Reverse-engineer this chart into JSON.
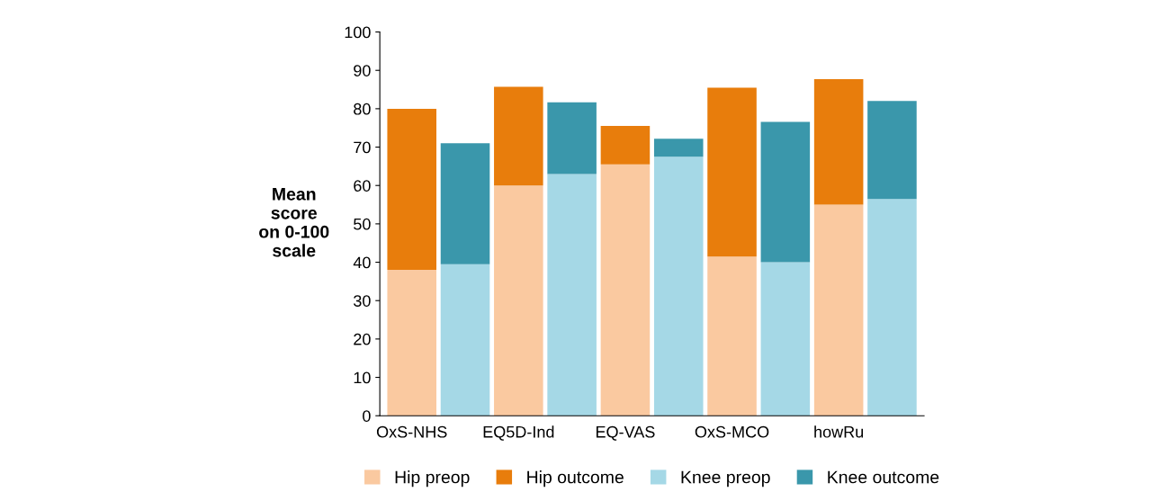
{
  "chart_data": {
    "type": "bar",
    "stacked": true,
    "ylabel": "Mean\nscore\non 0-100\nscale",
    "categories": [
      "OxS-NHS",
      null,
      "EQ5D-Ind",
      null,
      "EQ-VAS",
      null,
      "OxS-MCO",
      null,
      "howRu",
      null
    ],
    "series": [
      {
        "name": "Hip preop",
        "color": "#fac9a0",
        "values": [
          38,
          null,
          60,
          null,
          65.5,
          null,
          41.5,
          null,
          55,
          null
        ]
      },
      {
        "name": "Hip outcome",
        "color": "#e87d0c",
        "values": [
          42,
          null,
          25.7,
          null,
          10,
          null,
          44,
          null,
          32.7,
          null
        ]
      },
      {
        "name": "Knee preop",
        "color": "#a5d8e6",
        "values": [
          null,
          39.5,
          null,
          63,
          null,
          67.5,
          null,
          40,
          null,
          56.5
        ]
      },
      {
        "name": "Knee outcome",
        "color": "#3a97ab",
        "values": [
          null,
          31.5,
          null,
          18.7,
          null,
          4.7,
          null,
          36.6,
          null,
          25.5
        ]
      }
    ],
    "ylim": [
      0,
      100
    ],
    "yticks": [
      0,
      10,
      20,
      30,
      40,
      50,
      60,
      70,
      80,
      90,
      100
    ],
    "grid": false,
    "legend": "bottom"
  }
}
